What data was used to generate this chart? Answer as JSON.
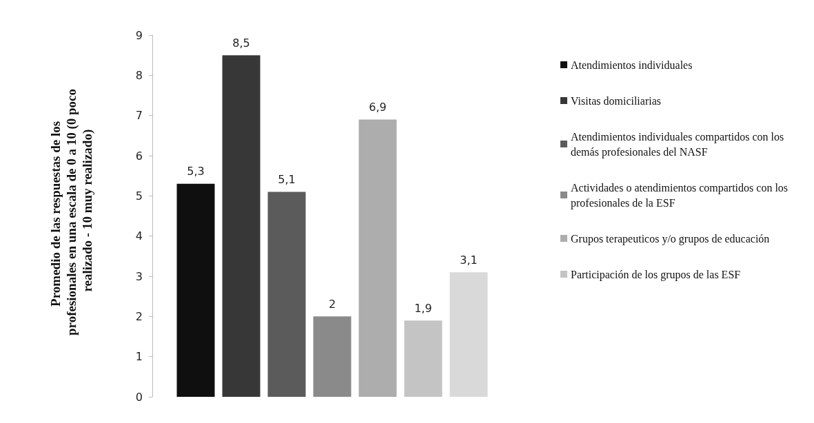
{
  "chart_data": {
    "type": "bar",
    "ylabel": "Promedio de las respuestas de los profesionales en una escala de 0 a 10 (0 poco realizado - 10 muy realizado)",
    "categories": [
      null
    ],
    "series": [
      {
        "name": "Atendimientos individuales",
        "color": "#0f0f0f",
        "values": [
          5.3
        ],
        "value_labels": [
          "5,3"
        ]
      },
      {
        "name": "Visitas domiciliarias",
        "color": "#373737",
        "values": [
          8.5
        ],
        "value_labels": [
          "8,5"
        ]
      },
      {
        "name": "Atendimientos individuales compartidos con los demás profesionales del NASF",
        "color": "#5b5b5b",
        "values": [
          5.1
        ],
        "value_labels": [
          "5,1"
        ]
      },
      {
        "name": "Actividades o atendimientos compartidos con los profesionales de la ESF",
        "color": "#8a8a8a",
        "values": [
          2
        ],
        "value_labels": [
          "2"
        ]
      },
      {
        "name": "Grupos terapeuticos y/o grupos de educación",
        "color": "#adadad",
        "values": [
          6.9
        ],
        "value_labels": [
          "6,9"
        ]
      },
      {
        "name": "Participación de los grupos de las ESF",
        "color": "#c4c4c4",
        "values": [
          1.9
        ],
        "value_labels": [
          "1,9"
        ]
      },
      {
        "color": "#d9d9d9",
        "values": [
          3.1
        ],
        "value_labels": [
          "3,1"
        ]
      }
    ],
    "ylim": [
      0,
      9
    ],
    "yticks": [
      0,
      1,
      2,
      3,
      4,
      5,
      6,
      7,
      8,
      9
    ],
    "grid": false,
    "legend": "right"
  }
}
